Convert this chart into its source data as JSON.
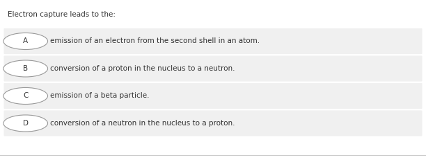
{
  "title": "Electron capture leads to the:",
  "options": [
    {
      "label": "A",
      "text": "emission of an electron from the second shell in an atom."
    },
    {
      "label": "B",
      "text": "conversion of a proton in the nucleus to a neutron."
    },
    {
      "label": "C",
      "text": "emission of a beta particle."
    },
    {
      "label": "D",
      "text": "conversion of a neutron in the nucleus to a proton."
    }
  ],
  "bg_color": "#f0f0f0",
  "page_bg": "#ffffff",
  "circle_color": "#ffffff",
  "circle_edge_color": "#999999",
  "text_color": "#333333",
  "title_color": "#333333",
  "title_fontsize": 7.5,
  "option_fontsize": 7.5,
  "label_fontsize": 7.5,
  "bottom_line_color": "#cccccc"
}
